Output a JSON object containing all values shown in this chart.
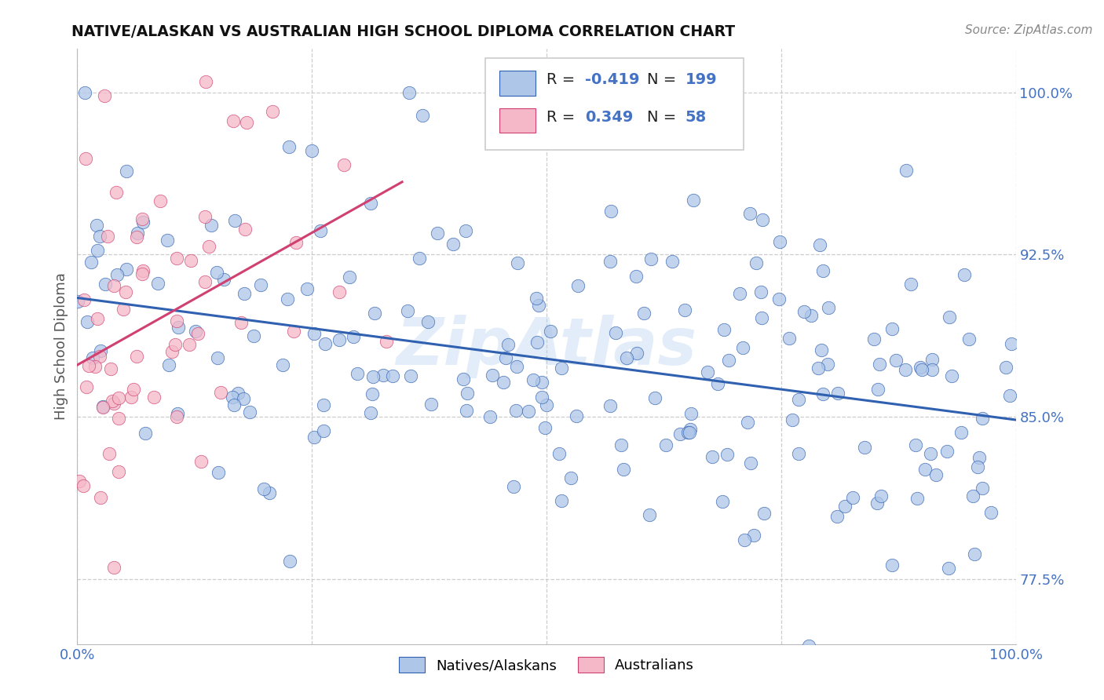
{
  "title": "NATIVE/ALASKAN VS AUSTRALIAN HIGH SCHOOL DIPLOMA CORRELATION CHART",
  "source": "Source: ZipAtlas.com",
  "ylabel": "High School Diploma",
  "xlim": [
    0.0,
    1.0
  ],
  "ylim": [
    0.745,
    1.02
  ],
  "yticks": [
    0.775,
    0.85,
    0.925,
    1.0
  ],
  "ytick_labels": [
    "77.5%",
    "85.0%",
    "92.5%",
    "100.0%"
  ],
  "xticks": [
    0.0,
    0.25,
    0.5,
    0.75,
    1.0
  ],
  "xtick_labels": [
    "0.0%",
    "",
    "",
    "",
    "100.0%"
  ],
  "blue_R": -0.419,
  "blue_N": 199,
  "pink_R": 0.349,
  "pink_N": 58,
  "blue_color": "#aec6e8",
  "pink_color": "#f5b8c8",
  "blue_line_color": "#3060b0",
  "pink_line_color": "#d04070",
  "legend_label_blue": "Natives/Alaskans",
  "legend_label_pink": "Australians",
  "background_color": "#ffffff",
  "grid_color": "#c8c8c8",
  "watermark": "ZipAtlas",
  "title_color": "#111111",
  "tick_color": "#4472c4",
  "seed": 12345
}
